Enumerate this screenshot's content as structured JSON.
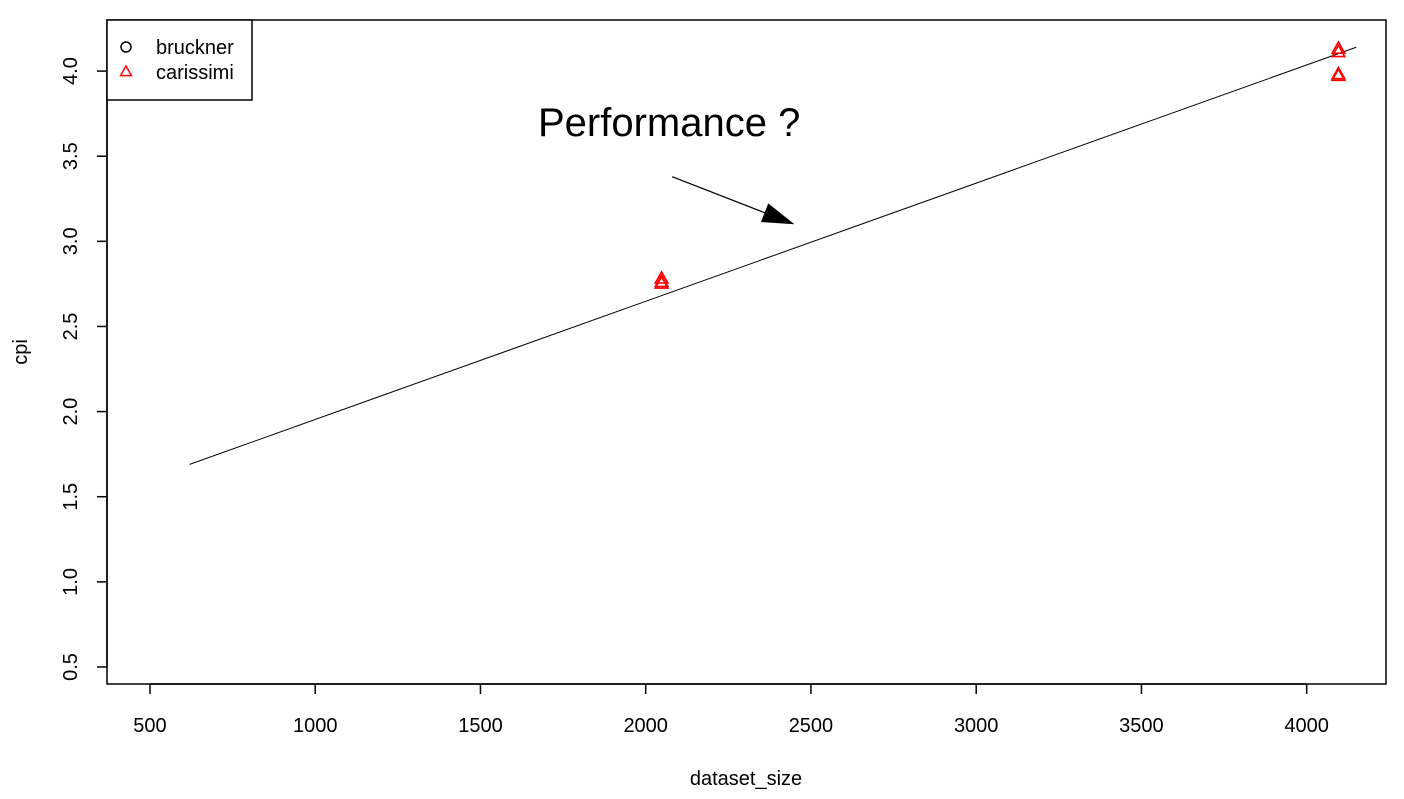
{
  "chart_data": {
    "type": "scatter",
    "xlabel": "dataset_size",
    "ylabel": "cpi",
    "xlim": [
      370,
      4240
    ],
    "ylim": [
      0.4,
      4.3
    ],
    "x_ticks": [
      500,
      1000,
      1500,
      2000,
      2500,
      3000,
      3500,
      4000
    ],
    "y_ticks": [
      0.5,
      1.0,
      1.5,
      2.0,
      2.5,
      3.0,
      3.5,
      4.0
    ],
    "x_tick_labels": [
      "500",
      "1000",
      "1500",
      "2000",
      "2500",
      "3000",
      "3500",
      "4000"
    ],
    "y_tick_labels": [
      "0.5",
      "1.0",
      "1.5",
      "2.0",
      "2.5",
      "3.0",
      "3.5",
      "4.0"
    ],
    "grid": false,
    "legend": {
      "placement": "top-left",
      "entries": [
        {
          "label": "bruckner",
          "marker": "circle",
          "color": "#000000"
        },
        {
          "label": "carissimi",
          "marker": "triangle",
          "color": "#ff0000"
        }
      ]
    },
    "series": [
      {
        "name": "bruckner",
        "marker": "circle",
        "color": "#000000",
        "points": []
      },
      {
        "name": "carissimi",
        "marker": "triangle",
        "color": "#ff0000",
        "points": [
          {
            "x": 2048,
            "y": 2.78
          },
          {
            "x": 2048,
            "y": 2.75
          },
          {
            "x": 2048,
            "y": 2.76
          },
          {
            "x": 4096,
            "y": 4.13
          },
          {
            "x": 4096,
            "y": 4.11
          },
          {
            "x": 4096,
            "y": 3.98
          },
          {
            "x": 4096,
            "y": 3.97
          }
        ]
      }
    ],
    "trend_line": {
      "color": "#000000",
      "x": [
        620,
        4150
      ],
      "y": [
        1.69,
        4.14
      ]
    },
    "annotation": {
      "text": "Performance ?",
      "arrow_from": {
        "x": 2080,
        "y": 3.38
      },
      "arrow_to": {
        "x": 2450,
        "y": 3.1
      }
    }
  }
}
